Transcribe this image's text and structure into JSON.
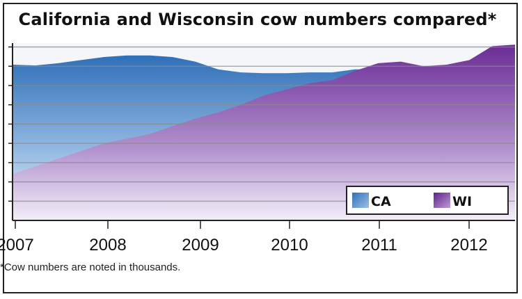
{
  "chart_data": {
    "type": "area",
    "title": "California and Wisconsin cow numbers compared*",
    "footnote": "*Cow numbers are noted in thousands.",
    "xlabel": "",
    "ylabel": "",
    "x_ticks": [
      "2007",
      "2008",
      "2009",
      "2010",
      "2011",
      "2012"
    ],
    "xlim": [
      2007,
      2012.5
    ],
    "ylim": [
      0,
      230
    ],
    "grid": true,
    "legend_position": "bottom-right",
    "x": [
      2007.0,
      2007.25,
      2007.5,
      2007.75,
      2008.0,
      2008.25,
      2008.5,
      2008.75,
      2009.0,
      2009.25,
      2009.5,
      2009.75,
      2010.0,
      2010.25,
      2010.5,
      2010.75,
      2011.0,
      2011.25,
      2011.5,
      2011.75,
      2012.0,
      2012.25,
      2012.5
    ],
    "series": [
      {
        "name": "CA",
        "color": "#3f7fc4",
        "values": [
          202,
          201,
          204,
          208,
          212,
          214,
          214,
          212,
          206,
          196,
          192,
          191,
          191,
          192,
          192,
          196,
          196,
          198,
          198,
          199,
          200,
          200,
          200
        ]
      },
      {
        "name": "WI",
        "color": "#7a3fa3",
        "values": [
          60,
          70,
          80,
          90,
          100,
          106,
          112,
          122,
          132,
          140,
          150,
          162,
          170,
          178,
          182,
          194,
          204,
          206,
          200,
          202,
          208,
          226,
          228
        ]
      }
    ]
  }
}
